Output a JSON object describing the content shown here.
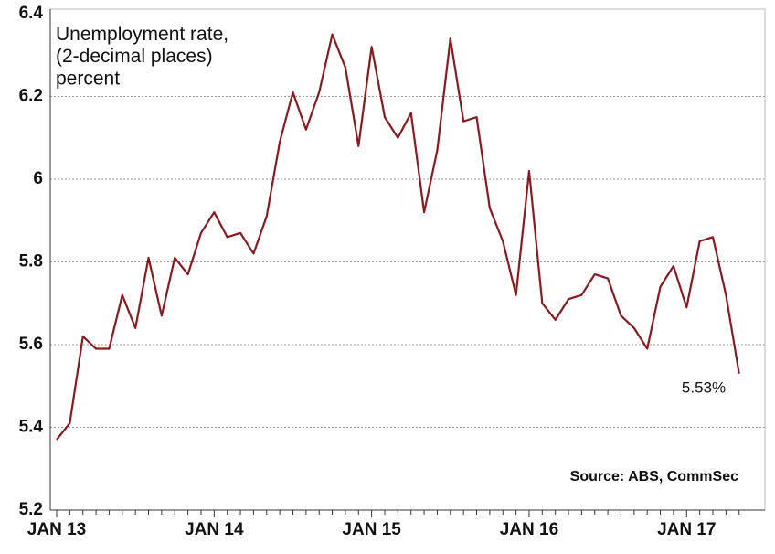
{
  "chart_data": {
    "type": "line",
    "annotation": "Unemployment rate,\n(2-decimal places)\npercent",
    "point_label": "5.53%",
    "source": "Source: ABS, CommSec",
    "categories": [
      "JAN 13",
      null,
      null,
      null,
      null,
      null,
      null,
      null,
      null,
      null,
      null,
      null,
      "JAN 14",
      null,
      null,
      null,
      null,
      null,
      null,
      null,
      null,
      null,
      null,
      null,
      "JAN 15",
      null,
      null,
      null,
      null,
      null,
      null,
      null,
      null,
      null,
      null,
      null,
      "JAN 16",
      null,
      null,
      null,
      null,
      null,
      null,
      null,
      null,
      null,
      null,
      null,
      "JAN 17",
      null,
      null,
      null,
      null
    ],
    "series": [
      {
        "name": "Unemployment rate",
        "color": "#8b1a1f",
        "values": [
          5.37,
          5.41,
          5.62,
          5.59,
          5.59,
          5.72,
          5.64,
          5.81,
          5.67,
          5.81,
          5.77,
          5.87,
          5.92,
          5.86,
          5.87,
          5.82,
          5.91,
          6.09,
          6.21,
          6.12,
          6.21,
          6.35,
          6.27,
          6.08,
          6.32,
          6.15,
          6.1,
          6.16,
          5.92,
          6.07,
          6.34,
          6.14,
          6.15,
          5.93,
          5.85,
          5.72,
          6.02,
          5.7,
          5.66,
          5.71,
          5.72,
          5.77,
          5.76,
          5.67,
          5.64,
          5.59,
          5.74,
          5.79,
          5.69,
          5.85,
          5.86,
          5.72,
          5.53
        ]
      }
    ],
    "ylim": [
      5.2,
      6.4
    ],
    "yticks": [
      5.2,
      5.4,
      5.6,
      5.8,
      6,
      6.2,
      6.4
    ],
    "grid": true
  }
}
